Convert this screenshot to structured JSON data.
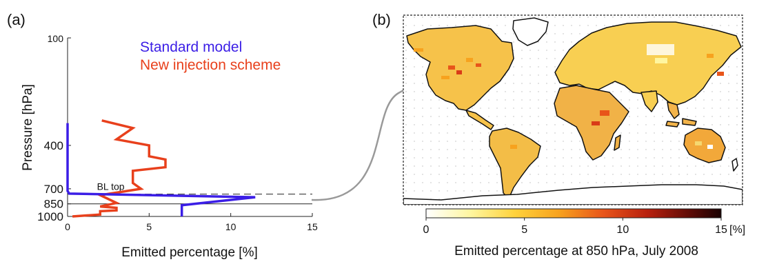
{
  "chart_data": [
    {
      "type": "line",
      "panel_label": "(a)",
      "xlabel": "Emitted percentage [%]",
      "ylabel": "Pressure [hPa]",
      "xlim": [
        0,
        15
      ],
      "x_ticks": [
        0,
        5,
        10,
        15
      ],
      "x_tick_labels": [
        "0",
        "5",
        "10",
        "15"
      ],
      "y_scale": "log",
      "y_reversed": true,
      "ylim": [
        100,
        1000
      ],
      "y_ticks": [
        100,
        400,
        700,
        850,
        1000
      ],
      "y_tick_labels": [
        "100",
        "400",
        "700",
        "850",
        "1000"
      ],
      "reference_lines": [
        {
          "label": "BL top",
          "pressure": 750,
          "style": "dashed"
        },
        {
          "label": "",
          "pressure": 850,
          "style": "solid"
        }
      ],
      "legend_position": "top-right",
      "series": [
        {
          "name": "Standard model",
          "color": "#3b1ee6",
          "points": [
            {
              "x": 0,
              "y": 300
            },
            {
              "x": 0,
              "y": 720
            },
            {
              "x": 0.1,
              "y": 745
            },
            {
              "x": 11.5,
              "y": 780
            },
            {
              "x": 7,
              "y": 865
            },
            {
              "x": 7,
              "y": 1000
            }
          ]
        },
        {
          "name": "New injection scheme",
          "color": "#e8401c",
          "points": [
            {
              "x": 2.1,
              "y": 290
            },
            {
              "x": 4,
              "y": 320
            },
            {
              "x": 3,
              "y": 370
            },
            {
              "x": 5,
              "y": 400
            },
            {
              "x": 5,
              "y": 460
            },
            {
              "x": 6,
              "y": 480
            },
            {
              "x": 6,
              "y": 530
            },
            {
              "x": 4,
              "y": 555
            },
            {
              "x": 4,
              "y": 650
            },
            {
              "x": 4.5,
              "y": 700
            },
            {
              "x": 2,
              "y": 760
            },
            {
              "x": 3,
              "y": 840
            },
            {
              "x": 2,
              "y": 880
            },
            {
              "x": 3,
              "y": 895
            },
            {
              "x": 3,
              "y": 925
            },
            {
              "x": 2,
              "y": 935
            },
            {
              "x": 2,
              "y": 975
            },
            {
              "x": 0.3,
              "y": 1000
            }
          ]
        }
      ]
    },
    {
      "type": "heatmap",
      "panel_label": "(b)",
      "xlabel": "Emitted percentage at 850 hPa, July 2008",
      "colorbar": {
        "range": [
          0,
          15
        ],
        "ticks": [
          0,
          5,
          10,
          15
        ],
        "tick_labels": [
          "0",
          "5",
          "10",
          "15"
        ],
        "unit": "[%]",
        "colors": [
          "#ffffff",
          "#fff6a0",
          "#ffd23c",
          "#f7a21e",
          "#e8551a",
          "#b8200e",
          "#5a0a06",
          "#1a0202"
        ]
      },
      "map": "world",
      "grid": "dotted"
    }
  ]
}
